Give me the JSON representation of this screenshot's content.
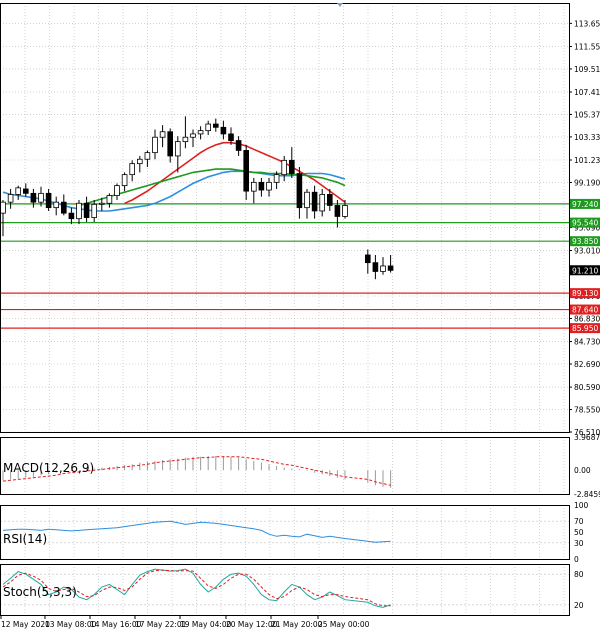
{
  "chart_data": [
    {
      "type": "candlestick",
      "panel": "price",
      "ylim": [
        76.51,
        115.5
      ],
      "y_ticks": [
        "113.650",
        "111.550",
        "109.510",
        "107.410",
        "105.370",
        "103.330",
        "101.230",
        "99.190",
        "95.090",
        "93.010",
        "88.870",
        "86.830",
        "84.730",
        "82.690",
        "80.590",
        "78.550",
        "76.510"
      ],
      "x_ticks": [
        "12 May 2020",
        "13 May 08:00",
        "14 May 16:00",
        "17 May 22:01",
        "19 May 04:00",
        "20 May 12:00",
        "21 May 20:00",
        "25 May 00:00"
      ],
      "candles": [
        {
          "o": 96.4,
          "h": 97.6,
          "l": 94.3,
          "c": 97.4
        },
        {
          "o": 97.4,
          "h": 98.6,
          "l": 96.8,
          "c": 98.1
        },
        {
          "o": 98.1,
          "h": 98.9,
          "l": 97.6,
          "c": 98.7
        },
        {
          "o": 98.6,
          "h": 99.1,
          "l": 97.9,
          "c": 98.2
        },
        {
          "o": 98.2,
          "h": 98.6,
          "l": 96.9,
          "c": 97.4
        },
        {
          "o": 97.4,
          "h": 98.8,
          "l": 97.0,
          "c": 98.2
        },
        {
          "o": 98.2,
          "h": 98.6,
          "l": 96.6,
          "c": 96.9
        },
        {
          "o": 96.9,
          "h": 97.9,
          "l": 96.2,
          "c": 97.4
        },
        {
          "o": 97.4,
          "h": 98.1,
          "l": 96.2,
          "c": 96.4
        },
        {
          "o": 96.4,
          "h": 96.9,
          "l": 95.4,
          "c": 95.9
        },
        {
          "o": 95.9,
          "h": 97.6,
          "l": 95.4,
          "c": 97.3
        },
        {
          "o": 97.3,
          "h": 97.9,
          "l": 95.6,
          "c": 96.0
        },
        {
          "o": 96.0,
          "h": 97.6,
          "l": 95.6,
          "c": 97.2
        },
        {
          "o": 97.2,
          "h": 97.8,
          "l": 96.6,
          "c": 97.3
        },
        {
          "o": 97.3,
          "h": 98.2,
          "l": 96.9,
          "c": 98.0
        },
        {
          "o": 98.0,
          "h": 99.1,
          "l": 97.6,
          "c": 98.9
        },
        {
          "o": 98.9,
          "h": 100.1,
          "l": 98.4,
          "c": 99.9
        },
        {
          "o": 99.9,
          "h": 101.2,
          "l": 99.3,
          "c": 100.9
        },
        {
          "o": 100.9,
          "h": 101.6,
          "l": 100.1,
          "c": 101.3
        },
        {
          "o": 101.3,
          "h": 102.1,
          "l": 100.6,
          "c": 101.9
        },
        {
          "o": 101.9,
          "h": 104.0,
          "l": 101.3,
          "c": 103.3
        },
        {
          "o": 103.3,
          "h": 104.4,
          "l": 102.4,
          "c": 103.8
        },
        {
          "o": 103.8,
          "h": 104.1,
          "l": 101.0,
          "c": 101.6
        },
        {
          "o": 101.6,
          "h": 103.4,
          "l": 100.1,
          "c": 102.9
        },
        {
          "o": 102.9,
          "h": 105.2,
          "l": 102.3,
          "c": 103.3
        },
        {
          "o": 103.3,
          "h": 104.0,
          "l": 102.4,
          "c": 103.6
        },
        {
          "o": 103.6,
          "h": 104.3,
          "l": 103.1,
          "c": 103.9
        },
        {
          "o": 103.9,
          "h": 104.8,
          "l": 103.5,
          "c": 104.5
        },
        {
          "o": 104.5,
          "h": 105.0,
          "l": 103.8,
          "c": 104.2
        },
        {
          "o": 104.2,
          "h": 104.8,
          "l": 103.1,
          "c": 103.6
        },
        {
          "o": 103.6,
          "h": 104.2,
          "l": 102.6,
          "c": 103.0
        },
        {
          "o": 103.0,
          "h": 103.4,
          "l": 101.6,
          "c": 102.1
        },
        {
          "o": 102.1,
          "h": 102.6,
          "l": 97.6,
          "c": 98.4
        },
        {
          "o": 98.4,
          "h": 99.6,
          "l": 97.3,
          "c": 99.2
        },
        {
          "o": 99.2,
          "h": 99.6,
          "l": 97.9,
          "c": 98.5
        },
        {
          "o": 98.5,
          "h": 99.6,
          "l": 97.9,
          "c": 99.2
        },
        {
          "o": 99.2,
          "h": 100.2,
          "l": 98.6,
          "c": 99.9
        },
        {
          "o": 99.9,
          "h": 101.6,
          "l": 99.3,
          "c": 101.2
        },
        {
          "o": 101.2,
          "h": 102.4,
          "l": 99.6,
          "c": 100.0
        },
        {
          "o": 100.0,
          "h": 100.6,
          "l": 95.9,
          "c": 96.9
        },
        {
          "o": 96.9,
          "h": 98.6,
          "l": 95.9,
          "c": 98.3
        },
        {
          "o": 98.3,
          "h": 98.9,
          "l": 95.9,
          "c": 96.6
        },
        {
          "o": 96.6,
          "h": 98.6,
          "l": 96.1,
          "c": 98.1
        },
        {
          "o": 98.1,
          "h": 98.6,
          "l": 96.6,
          "c": 97.1
        },
        {
          "o": 97.1,
          "h": 97.6,
          "l": 95.1,
          "c": 96.1
        },
        {
          "o": 96.1,
          "h": 97.6,
          "l": 95.9,
          "c": 97.1
        },
        {
          "o": 92.6,
          "h": 93.1,
          "l": 90.9,
          "c": 91.9
        },
        {
          "o": 91.9,
          "h": 92.6,
          "l": 90.4,
          "c": 91.1
        },
        {
          "o": 91.1,
          "h": 92.4,
          "l": 90.8,
          "c": 91.6
        },
        {
          "o": 91.6,
          "h": 92.6,
          "l": 91.0,
          "c": 91.2
        }
      ],
      "candle_gap_after_index": 45,
      "moving_averages": [
        {
          "color": "#2e8ee0",
          "values": [
            98.3,
            98.1,
            98.0,
            97.9,
            97.8,
            97.7,
            97.5,
            97.3,
            97.1,
            96.9,
            96.8,
            96.7,
            96.6,
            96.6,
            96.6,
            96.7,
            96.8,
            96.9,
            97.0,
            97.1,
            97.3,
            97.6,
            97.9,
            98.3,
            98.7,
            99.1,
            99.4,
            99.7,
            99.9,
            100.1,
            100.2,
            100.2,
            100.2,
            100.1,
            100.0,
            99.9,
            99.8,
            99.8,
            99.8,
            99.9,
            100.0,
            100.0,
            100.0,
            99.9,
            99.7,
            99.5
          ]
        },
        {
          "color": "#e02020",
          "values": [
            null,
            null,
            null,
            null,
            null,
            null,
            null,
            null,
            null,
            null,
            null,
            null,
            null,
            null,
            null,
            null,
            97.3,
            97.6,
            98.0,
            98.4,
            98.9,
            99.4,
            99.9,
            100.4,
            100.9,
            101.4,
            101.9,
            102.3,
            102.6,
            102.8,
            102.8,
            102.7,
            102.5,
            102.2,
            101.9,
            101.6,
            101.3,
            101.0,
            100.6,
            100.2,
            99.8,
            99.4,
            98.9,
            98.4,
            97.9,
            97.4
          ]
        },
        {
          "color": "#1e9a1e",
          "values": [
            null,
            null,
            null,
            null,
            null,
            null,
            null,
            null,
            null,
            null,
            97.1,
            97.3,
            97.5,
            97.7,
            97.9,
            98.1,
            98.3,
            98.5,
            98.7,
            98.9,
            99.1,
            99.3,
            99.5,
            99.7,
            99.9,
            100.1,
            100.2,
            100.3,
            100.4,
            100.4,
            100.4,
            100.3,
            100.2,
            100.1,
            100.1,
            100.0,
            100.0,
            100.0,
            99.9,
            99.9,
            99.8,
            99.7,
            99.6,
            99.4,
            99.2,
            98.9
          ]
        }
      ],
      "horizontal_levels": [
        {
          "value": 97.24,
          "label": "97.240",
          "color": "#1e9a1e"
        },
        {
          "value": 95.54,
          "label": "95.540",
          "color": "#1e9a1e"
        },
        {
          "value": 93.85,
          "label": "93.850",
          "color": "#1e9a1e"
        },
        {
          "value": 89.13,
          "label": "89.130",
          "color": "#e02020"
        },
        {
          "value": 87.64,
          "label": "87.640",
          "color": "#e02020"
        },
        {
          "value": 85.95,
          "label": "85.950",
          "color": "#e02020"
        }
      ],
      "current_price": {
        "value": 91.21,
        "label": "91.210"
      }
    },
    {
      "type": "bar",
      "panel": "macd",
      "title": "MACD(12,26,9)",
      "y_ticks": [
        "3.9687",
        "0.00",
        "-2.8459"
      ],
      "ylim": [
        -2.8459,
        3.9687
      ],
      "histogram": [
        -1.2,
        -1.1,
        -1.0,
        -0.9,
        -0.8,
        -0.6,
        -0.5,
        -0.3,
        -0.2,
        -0.1,
        0.0,
        0.1,
        0.2,
        0.3,
        0.4,
        0.5,
        0.6,
        0.7,
        0.9,
        1.0,
        1.1,
        1.2,
        1.3,
        1.4,
        1.5,
        1.6,
        1.6,
        1.7,
        1.7,
        1.7,
        1.6,
        1.5,
        1.3,
        1.1,
        0.9,
        0.7,
        0.5,
        0.3,
        0.2,
        0.1,
        -0.1,
        -0.3,
        -0.5,
        -0.7,
        -0.9,
        -1.1,
        -1.5,
        -1.8,
        -2.0,
        -2.1
      ],
      "signal": [
        -1.3,
        -1.2,
        -1.1,
        -1.0,
        -0.9,
        -0.8,
        -0.7,
        -0.6,
        -0.4,
        -0.3,
        -0.2,
        -0.1,
        0.0,
        0.1,
        0.2,
        0.3,
        0.4,
        0.5,
        0.6,
        0.7,
        0.9,
        1.0,
        1.1,
        1.2,
        1.3,
        1.4,
        1.5,
        1.5,
        1.6,
        1.6,
        1.6,
        1.6,
        1.5,
        1.4,
        1.3,
        1.1,
        0.9,
        0.7,
        0.6,
        0.4,
        0.2,
        0.0,
        -0.2,
        -0.4,
        -0.6,
        -0.8,
        -1.1,
        -1.4,
        -1.6,
        -1.8
      ]
    },
    {
      "type": "line",
      "panel": "rsi",
      "title": "RSI(14)",
      "y_ticks": [
        "100",
        "70",
        "50",
        "30",
        "0"
      ],
      "ylim": [
        0,
        100
      ],
      "values": [
        53,
        54,
        55,
        55,
        54,
        53,
        55,
        54,
        53,
        52,
        53,
        54,
        55,
        56,
        57,
        58,
        60,
        62,
        64,
        66,
        68,
        69,
        70,
        67,
        64,
        66,
        68,
        67,
        66,
        64,
        62,
        60,
        58,
        56,
        53,
        46,
        42,
        44,
        42,
        41,
        46,
        43,
        40,
        42,
        40,
        38,
        33,
        31,
        32,
        33
      ]
    },
    {
      "type": "line",
      "panel": "stochastic",
      "title": "Stoch(5,3,3)",
      "y_ticks": [
        "80",
        "20"
      ],
      "ylim": [
        0,
        100
      ],
      "k": [
        60,
        72,
        85,
        80,
        70,
        60,
        40,
        45,
        55,
        50,
        35,
        30,
        40,
        55,
        60,
        50,
        40,
        60,
        78,
        85,
        90,
        88,
        86,
        87,
        90,
        82,
        60,
        45,
        55,
        70,
        80,
        82,
        76,
        60,
        40,
        30,
        28,
        45,
        60,
        55,
        40,
        30,
        35,
        45,
        38,
        30,
        25,
        18,
        15,
        20
      ],
      "d": [
        55,
        65,
        78,
        82,
        76,
        68,
        52,
        46,
        50,
        52,
        45,
        36,
        38,
        48,
        55,
        54,
        48,
        55,
        70,
        82,
        87,
        88,
        87,
        86,
        87,
        86,
        72,
        57,
        52,
        60,
        72,
        80,
        80,
        70,
        55,
        40,
        32,
        36,
        48,
        55,
        50,
        40,
        36,
        40,
        40,
        36,
        30,
        22,
        18,
        18
      ]
    }
  ]
}
